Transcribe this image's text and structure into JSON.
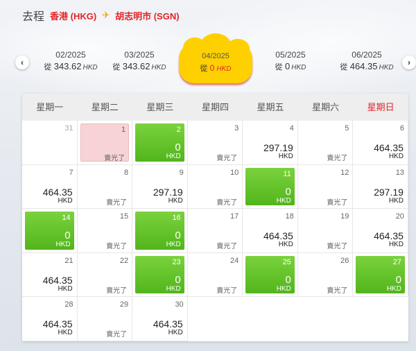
{
  "route": {
    "direction_label": "去程",
    "origin": "香港 (HKG)",
    "plane_icon": "plane-icon",
    "destination": "胡志明市 (SGN)"
  },
  "month_nav": {
    "prev_icon": "chevron-left-icon",
    "next_icon": "chevron-right-icon",
    "months": [
      {
        "month": "02/2025",
        "prefix": "從",
        "amount": "343.62",
        "currency": "HKD"
      },
      {
        "month": "03/2025",
        "prefix": "從",
        "amount": "343.62",
        "currency": "HKD"
      },
      {
        "month": "04/2025",
        "prefix": "從",
        "amount": "0",
        "currency": "HKD",
        "active": true
      },
      {
        "month": "05/2025",
        "prefix": "從",
        "amount": "0",
        "currency": "HKD"
      },
      {
        "month": "06/2025",
        "prefix": "從",
        "amount": "464.35",
        "currency": "HKD"
      }
    ]
  },
  "calendar": {
    "weekdays": [
      "星期一",
      "星期二",
      "星期三",
      "星期四",
      "星期五",
      "星期六",
      "星期日"
    ],
    "sold_out_label": "賣光了",
    "currency": "HKD",
    "colors": {
      "green": "#5cbf26",
      "pink": "#f7d3d5",
      "sunday_red": "#e1252a"
    },
    "days": [
      {
        "day": "31",
        "type": "empty"
      },
      {
        "day": "1",
        "type": "pink"
      },
      {
        "day": "2",
        "type": "green",
        "price": "0"
      },
      {
        "day": "3",
        "type": "sold"
      },
      {
        "day": "4",
        "type": "price",
        "price": "297.19"
      },
      {
        "day": "5",
        "type": "sold"
      },
      {
        "day": "6",
        "type": "price",
        "price": "464.35"
      },
      {
        "day": "7",
        "type": "price",
        "price": "464.35"
      },
      {
        "day": "8",
        "type": "sold"
      },
      {
        "day": "9",
        "type": "price",
        "price": "297.19"
      },
      {
        "day": "10",
        "type": "sold"
      },
      {
        "day": "11",
        "type": "green",
        "price": "0"
      },
      {
        "day": "12",
        "type": "sold"
      },
      {
        "day": "13",
        "type": "price",
        "price": "297.19"
      },
      {
        "day": "14",
        "type": "green",
        "price": "0"
      },
      {
        "day": "15",
        "type": "sold"
      },
      {
        "day": "16",
        "type": "green",
        "price": "0"
      },
      {
        "day": "17",
        "type": "sold"
      },
      {
        "day": "18",
        "type": "price",
        "price": "464.35"
      },
      {
        "day": "19",
        "type": "sold"
      },
      {
        "day": "20",
        "type": "price",
        "price": "464.35"
      },
      {
        "day": "21",
        "type": "price",
        "price": "464.35"
      },
      {
        "day": "22",
        "type": "sold"
      },
      {
        "day": "23",
        "type": "green",
        "price": "0"
      },
      {
        "day": "24",
        "type": "sold"
      },
      {
        "day": "25",
        "type": "green",
        "price": "0"
      },
      {
        "day": "26",
        "type": "sold"
      },
      {
        "day": "27",
        "type": "green",
        "price": "0"
      },
      {
        "day": "28",
        "type": "price",
        "price": "464.35"
      },
      {
        "day": "29",
        "type": "sold"
      },
      {
        "day": "30",
        "type": "price",
        "price": "464.35"
      }
    ]
  }
}
